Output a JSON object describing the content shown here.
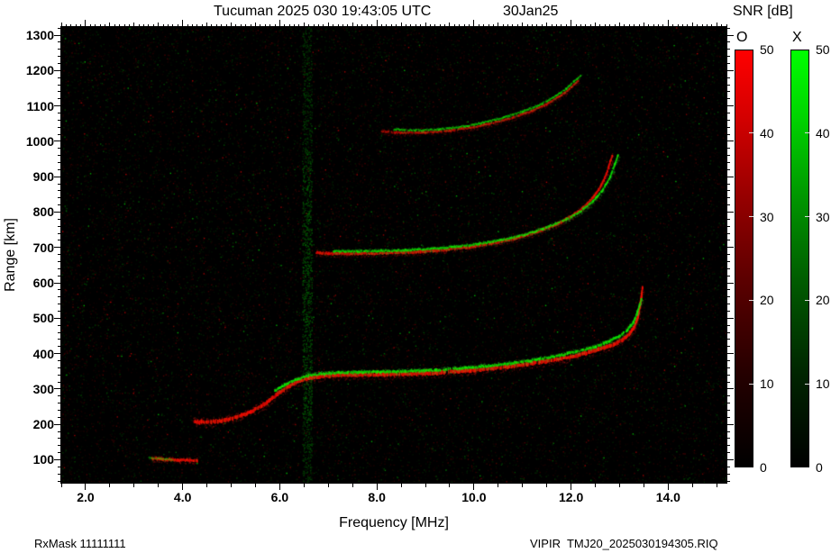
{
  "title": {
    "main": "Tucuman 2025 030 19:43:05 UTC",
    "date": "30Jan25"
  },
  "colorbar": {
    "title": "SNR [dB]",
    "o_label": "O",
    "x_label": "X",
    "min": 0,
    "max": 50,
    "ticks": [
      0,
      10,
      20,
      30,
      40,
      50
    ],
    "tick_labels": [
      "0",
      "10",
      "20",
      "30",
      "40",
      "50"
    ],
    "o_color": "#ff0000",
    "x_color": "#00ff00"
  },
  "footer": {
    "left": "RxMask 11111111",
    "right": "VIPIR  TMJ20_2025030194305.RIQ"
  },
  "chart_data": {
    "type": "scatter",
    "subtype": "ionogram",
    "title": "Tucuman 2025 030 19:43:05 UTC",
    "date": "30Jan25",
    "xlabel": "Frequency [MHz]",
    "ylabel": "Range [km]",
    "xlim": [
      1.5,
      15.2
    ],
    "ylim": [
      35,
      1323
    ],
    "xticks": [
      2,
      4,
      6,
      8,
      10,
      12,
      14
    ],
    "xtick_labels": [
      "2.0",
      "4.0",
      "6.0",
      "8.0",
      "10.0",
      "12.0",
      "14.0"
    ],
    "x_minor_step": 0.5,
    "x_fine_step": 0.1,
    "yticks": [
      100,
      200,
      300,
      400,
      500,
      600,
      700,
      800,
      900,
      1000,
      1100,
      1200,
      1300
    ],
    "ytick_labels": [
      "100",
      "200",
      "300",
      "400",
      "500",
      "600",
      "700",
      "800",
      "900",
      "1000",
      "1100",
      "1200",
      "1300"
    ],
    "y_minor_step": 20,
    "background": "#000000",
    "legend": {
      "O_mode_color": "#ff0000",
      "X_mode_color": "#00ff00"
    },
    "noise_band": {
      "freq": 6.46,
      "width": 0.2
    },
    "traces": [
      {
        "name": "Es-layer O-mode",
        "mode": "O",
        "strength": 1.0,
        "width": 3,
        "points": [
          [
            3.35,
            104
          ],
          [
            3.6,
            101
          ],
          [
            3.9,
            99
          ],
          [
            4.15,
            98
          ],
          [
            4.3,
            98
          ]
        ]
      },
      {
        "name": "Es-layer X-mode",
        "mode": "X",
        "strength": 0.4,
        "width": 1.8,
        "points": [
          [
            3.3,
            106
          ],
          [
            3.55,
            103
          ],
          [
            3.8,
            101
          ]
        ]
      },
      {
        "name": "F-layer first hop O-mode",
        "mode": "O",
        "strength": 1.0,
        "width": 4.2,
        "points": [
          [
            4.2,
            207
          ],
          [
            4.5,
            206
          ],
          [
            4.8,
            210
          ],
          [
            5.1,
            220
          ],
          [
            5.4,
            235
          ],
          [
            5.7,
            258
          ],
          [
            5.95,
            285
          ],
          [
            6.15,
            305
          ],
          [
            6.35,
            320
          ],
          [
            6.6,
            331
          ],
          [
            6.9,
            337
          ],
          [
            7.4,
            340
          ],
          [
            8.0,
            341
          ],
          [
            8.6,
            342
          ],
          [
            9.2,
            345
          ],
          [
            9.7,
            350
          ],
          [
            10.2,
            356
          ],
          [
            10.7,
            363
          ],
          [
            11.2,
            372
          ],
          [
            11.7,
            383
          ],
          [
            12.1,
            394
          ],
          [
            12.5,
            408
          ],
          [
            12.8,
            422
          ],
          [
            13.05,
            438
          ],
          [
            13.2,
            455
          ],
          [
            13.3,
            475
          ],
          [
            13.38,
            505
          ],
          [
            13.43,
            545
          ],
          [
            13.47,
            585
          ]
        ]
      },
      {
        "name": "F-layer first hop X-mode",
        "mode": "X",
        "strength": 0.92,
        "width": 2.8,
        "points": [
          [
            5.9,
            295
          ],
          [
            6.1,
            312
          ],
          [
            6.35,
            327
          ],
          [
            6.6,
            338
          ],
          [
            6.9,
            344
          ],
          [
            7.4,
            347
          ],
          [
            8.0,
            348
          ],
          [
            8.6,
            350
          ],
          [
            9.2,
            353
          ],
          [
            9.7,
            358
          ],
          [
            10.2,
            364
          ],
          [
            10.7,
            371
          ],
          [
            11.2,
            381
          ],
          [
            11.7,
            393
          ],
          [
            12.1,
            405
          ],
          [
            12.5,
            420
          ],
          [
            12.8,
            436
          ],
          [
            13.0,
            450
          ],
          [
            13.15,
            466
          ],
          [
            13.28,
            488
          ],
          [
            13.36,
            515
          ],
          [
            13.45,
            555
          ]
        ]
      },
      {
        "name": "F-layer second hop O-mode",
        "mode": "O",
        "strength": 0.85,
        "width": 3,
        "points": [
          [
            6.75,
            686
          ],
          [
            7.0,
            683
          ],
          [
            7.4,
            682
          ],
          [
            7.9,
            683
          ],
          [
            8.4,
            685
          ],
          [
            8.9,
            688
          ],
          [
            9.4,
            693
          ],
          [
            9.9,
            701
          ],
          [
            10.4,
            712
          ],
          [
            10.9,
            727
          ],
          [
            11.3,
            744
          ],
          [
            11.7,
            765
          ],
          [
            12.0,
            788
          ],
          [
            12.25,
            812
          ],
          [
            12.45,
            840
          ],
          [
            12.6,
            870
          ],
          [
            12.72,
            905
          ],
          [
            12.8,
            940
          ],
          [
            12.85,
            958
          ]
        ]
      },
      {
        "name": "F-layer second hop X-mode",
        "mode": "X",
        "strength": 0.8,
        "width": 2.4,
        "points": [
          [
            7.1,
            690
          ],
          [
            7.6,
            689
          ],
          [
            8.1,
            690
          ],
          [
            8.6,
            692
          ],
          [
            9.1,
            696
          ],
          [
            9.6,
            702
          ],
          [
            10.1,
            710
          ],
          [
            10.6,
            722
          ],
          [
            11.1,
            738
          ],
          [
            11.5,
            757
          ],
          [
            11.9,
            779
          ],
          [
            12.2,
            803
          ],
          [
            12.45,
            830
          ],
          [
            12.65,
            862
          ],
          [
            12.8,
            898
          ],
          [
            12.9,
            935
          ],
          [
            12.97,
            962
          ]
        ]
      },
      {
        "name": "F-layer third hop O-mode",
        "mode": "O",
        "strength": 0.7,
        "width": 2.4,
        "points": [
          [
            8.1,
            1028
          ],
          [
            8.5,
            1024
          ],
          [
            9.0,
            1025
          ],
          [
            9.5,
            1030
          ],
          [
            10.0,
            1040
          ],
          [
            10.4,
            1052
          ],
          [
            10.8,
            1067
          ],
          [
            11.2,
            1086
          ],
          [
            11.5,
            1105
          ],
          [
            11.8,
            1130
          ],
          [
            12.0,
            1152
          ],
          [
            12.15,
            1172
          ]
        ]
      },
      {
        "name": "F-layer third hop X-mode",
        "mode": "X",
        "strength": 0.65,
        "width": 2,
        "points": [
          [
            8.35,
            1034
          ],
          [
            8.8,
            1031
          ],
          [
            9.3,
            1034
          ],
          [
            9.8,
            1042
          ],
          [
            10.2,
            1053
          ],
          [
            10.6,
            1067
          ],
          [
            11.0,
            1084
          ],
          [
            11.35,
            1103
          ],
          [
            11.65,
            1125
          ],
          [
            11.9,
            1148
          ],
          [
            12.05,
            1168
          ],
          [
            12.2,
            1185
          ]
        ]
      }
    ]
  }
}
